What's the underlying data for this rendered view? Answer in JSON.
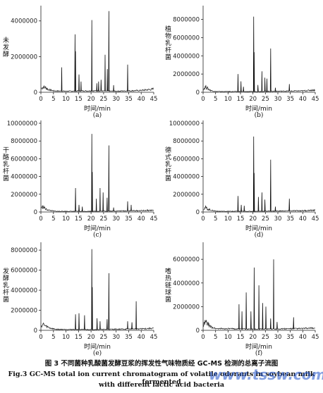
{
  "chart_data": [
    {
      "type": "line",
      "panel_label": "(a)",
      "ylabel": "未发酵",
      "xlabel": "时间/min",
      "xlim": [
        0,
        45
      ],
      "ylim": [
        0,
        4700000
      ],
      "yticks": [
        0,
        2000000,
        4000000
      ],
      "ytick_labels": [
        "0",
        "2000000",
        "4000000"
      ],
      "xticks": [
        0,
        5,
        10,
        15,
        20,
        25,
        30,
        35,
        40,
        45
      ],
      "baseline": [
        [
          0,
          200000
        ],
        [
          1,
          300000
        ],
        [
          2,
          250000
        ],
        [
          3,
          150000
        ],
        [
          5,
          80000
        ],
        [
          10,
          60000
        ],
        [
          20,
          80000
        ],
        [
          30,
          60000
        ],
        [
          40,
          100000
        ],
        [
          45,
          180000
        ]
      ],
      "peaks": [
        [
          8.3,
          1400000
        ],
        [
          13.6,
          3250000
        ],
        [
          13.8,
          2300000
        ],
        [
          15.2,
          1000000
        ],
        [
          16.0,
          600000
        ],
        [
          20.3,
          4050000
        ],
        [
          22.3,
          500000
        ],
        [
          23.0,
          600000
        ],
        [
          24.0,
          700000
        ],
        [
          25.6,
          2100000
        ],
        [
          27.1,
          4550000
        ],
        [
          26.5,
          1300000
        ],
        [
          29.0,
          400000
        ],
        [
          34.6,
          1550000
        ]
      ]
    },
    {
      "type": "line",
      "panel_label": "(b)",
      "ylabel": "植物乳杆菌",
      "xlabel": "时间/min",
      "xlim": [
        0,
        45
      ],
      "ylim": [
        0,
        9200000
      ],
      "yticks": [
        0,
        2000000,
        4000000,
        6000000,
        8000000
      ],
      "ytick_labels": [
        "0",
        "2000000",
        "4000000",
        "6000000",
        "8000000"
      ],
      "xticks": [
        0,
        5,
        10,
        15,
        20,
        25,
        30,
        35,
        40,
        45
      ],
      "baseline": [
        [
          0,
          300000
        ],
        [
          1,
          600000
        ],
        [
          2,
          400000
        ],
        [
          3,
          200000
        ],
        [
          5,
          80000
        ],
        [
          20,
          80000
        ],
        [
          40,
          150000
        ],
        [
          45,
          250000
        ]
      ],
      "peaks": [
        [
          14.0,
          2000000
        ],
        [
          15.2,
          1200000
        ],
        [
          16.2,
          600000
        ],
        [
          20.3,
          8300000
        ],
        [
          20.5,
          4400000
        ],
        [
          22.0,
          800000
        ],
        [
          23.6,
          2300000
        ],
        [
          24.8,
          1600000
        ],
        [
          25.6,
          1500000
        ],
        [
          27.1,
          4800000
        ],
        [
          29.0,
          500000
        ],
        [
          34.6,
          900000
        ]
      ]
    },
    {
      "type": "line",
      "panel_label": "(c)",
      "ylabel": "干酪乳杆菌",
      "xlabel": "时间/min",
      "xlim": [
        0,
        45
      ],
      "ylim": [
        0,
        10000000
      ],
      "yticks": [
        0,
        2000000,
        4000000,
        6000000,
        8000000,
        10000000
      ],
      "ytick_labels": [
        "0",
        "2000000",
        "4000000",
        "6000000",
        "8000000",
        "10000000"
      ],
      "xticks": [
        0,
        5,
        10,
        15,
        20,
        25,
        30,
        35,
        40,
        45
      ],
      "baseline": [
        [
          0,
          500000
        ],
        [
          1,
          600000
        ],
        [
          2,
          300000
        ],
        [
          4,
          150000
        ],
        [
          6,
          80000
        ],
        [
          20,
          80000
        ],
        [
          40,
          150000
        ],
        [
          45,
          200000
        ]
      ],
      "peaks": [
        [
          13.8,
          2700000
        ],
        [
          15.2,
          800000
        ],
        [
          16.5,
          600000
        ],
        [
          20.3,
          8800000
        ],
        [
          20.5,
          4500000
        ],
        [
          22.1,
          1500000
        ],
        [
          23.6,
          2700000
        ],
        [
          24.8,
          2200000
        ],
        [
          27.1,
          7500000
        ],
        [
          26.4,
          1600000
        ],
        [
          29.0,
          500000
        ],
        [
          34.6,
          1200000
        ],
        [
          36.0,
          800000
        ]
      ]
    },
    {
      "type": "line",
      "panel_label": "(d)",
      "ylabel": "德式乳杆菌",
      "xlabel": "时间/min",
      "xlim": [
        0,
        45
      ],
      "ylim": [
        0,
        10000000
      ],
      "yticks": [
        0,
        2000000,
        4000000,
        6000000,
        8000000,
        10000000
      ],
      "ytick_labels": [
        "0",
        "2000000",
        "4000000",
        "6000000",
        "8000000",
        "10000000"
      ],
      "xticks": [
        0,
        5,
        10,
        15,
        20,
        25,
        30,
        35,
        40,
        45
      ],
      "baseline": [
        [
          0,
          300000
        ],
        [
          1,
          500000
        ],
        [
          2,
          300000
        ],
        [
          4,
          150000
        ],
        [
          6,
          80000
        ],
        [
          20,
          80000
        ],
        [
          40,
          150000
        ],
        [
          45,
          200000
        ]
      ],
      "peaks": [
        [
          14.0,
          1800000
        ],
        [
          15.3,
          800000
        ],
        [
          16.5,
          700000
        ],
        [
          20.3,
          8500000
        ],
        [
          20.5,
          4400000
        ],
        [
          22.2,
          1700000
        ],
        [
          23.6,
          2200000
        ],
        [
          24.8,
          1400000
        ],
        [
          27.1,
          5900000
        ],
        [
          29.0,
          600000
        ],
        [
          34.6,
          1500000
        ]
      ]
    },
    {
      "type": "line",
      "panel_label": "(e)",
      "ylabel": "发酵乳杆菌",
      "xlabel": "时间/min",
      "xlim": [
        0,
        45
      ],
      "ylim": [
        0,
        8500000
      ],
      "yticks": [
        0,
        2000000,
        4000000,
        6000000,
        8000000
      ],
      "ytick_labels": [
        "0",
        "2000000",
        "4000000",
        "6000000",
        "8000000"
      ],
      "xticks": [
        0,
        5,
        10,
        15,
        20,
        25,
        30,
        35,
        40,
        45
      ],
      "baseline": [
        [
          0,
          400000
        ],
        [
          1,
          600000
        ],
        [
          2,
          400000
        ],
        [
          4,
          200000
        ],
        [
          6,
          100000
        ],
        [
          20,
          80000
        ],
        [
          40,
          150000
        ],
        [
          45,
          200000
        ]
      ],
      "peaks": [
        [
          13.8,
          1600000
        ],
        [
          15.2,
          1700000
        ],
        [
          17.4,
          1500000
        ],
        [
          20.3,
          8100000
        ],
        [
          20.5,
          4300000
        ],
        [
          22.4,
          1200000
        ],
        [
          23.6,
          900000
        ],
        [
          27.1,
          5700000
        ],
        [
          26.4,
          1100000
        ],
        [
          34.6,
          900000
        ],
        [
          38.0,
          2900000
        ],
        [
          36.3,
          800000
        ]
      ]
    },
    {
      "type": "line",
      "panel_label": "(f)",
      "ylabel": "嗜热链球菌",
      "xlabel": "时间/min",
      "xlim": [
        0,
        45
      ],
      "ylim": [
        0,
        7200000
      ],
      "yticks": [
        0,
        2000000,
        4000000,
        6000000
      ],
      "ytick_labels": [
        "0",
        "2000000",
        "4000000",
        "6000000"
      ],
      "xticks": [
        0,
        5,
        10,
        15,
        20,
        25,
        30,
        35,
        40,
        45
      ],
      "baseline": [
        [
          0,
          400000
        ],
        [
          1,
          700000
        ],
        [
          2,
          500000
        ],
        [
          3,
          300000
        ],
        [
          5,
          150000
        ],
        [
          20,
          100000
        ],
        [
          40,
          150000
        ],
        [
          45,
          200000
        ]
      ],
      "peaks": [
        [
          14.4,
          2200000
        ],
        [
          15.6,
          1600000
        ],
        [
          17.3,
          3200000
        ],
        [
          19.2,
          1600000
        ],
        [
          20.5,
          5300000
        ],
        [
          22.4,
          3800000
        ],
        [
          23.9,
          2300000
        ],
        [
          25.2,
          2000000
        ],
        [
          27.1,
          1000000
        ],
        [
          28.3,
          6000000
        ],
        [
          29.7,
          700000
        ],
        [
          36.3,
          1100000
        ]
      ]
    }
  ],
  "caption": {
    "zh": "图 3  不同菌种乳酸菌发酵豆浆的挥发性气味物质经 GC-MS 检测的总离子流图",
    "en_line1": "Fig.3   GC-MS total ion current chromatogram of volatile odorants in soybean milk fermented",
    "en_line2": "with different lactic acid bacteria"
  },
  "watermark": "www.tssw.com"
}
